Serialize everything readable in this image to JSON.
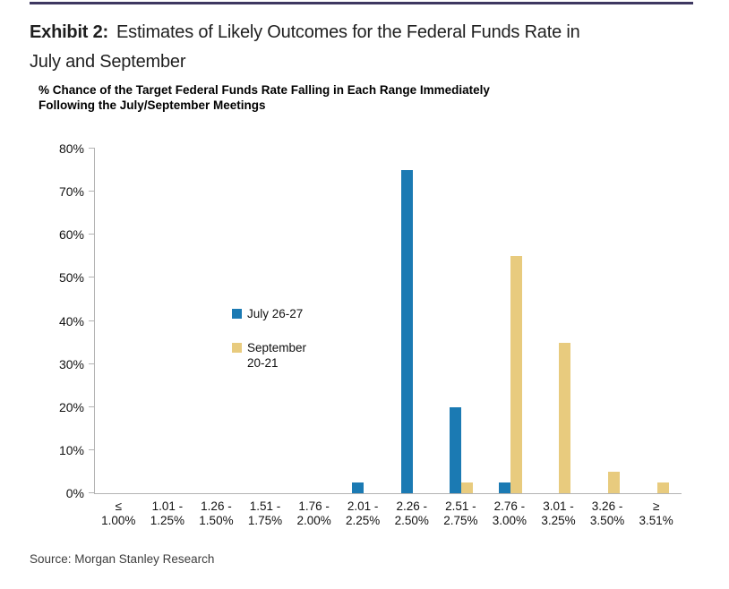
{
  "header": {
    "exhibit_label": "Exhibit 2:",
    "title_line1": "Estimates of Likely Outcomes for the Federal Funds Rate in",
    "title_line2": "July and September"
  },
  "subtitle": {
    "line1": "% Chance of the Target Federal Funds Rate Falling in Each Range Immediately",
    "line2": "Following the July/September Meetings"
  },
  "chart_data": {
    "type": "bar",
    "title": "% Chance of the Target Federal Funds Rate Falling in Each Range Immediately Following the July/September Meetings",
    "categories": [
      {
        "line1": "≤",
        "line2": "1.00%"
      },
      {
        "line1": "1.01 -",
        "line2": "1.25%"
      },
      {
        "line1": "1.26 -",
        "line2": "1.50%"
      },
      {
        "line1": "1.51 -",
        "line2": "1.75%"
      },
      {
        "line1": "1.76 -",
        "line2": "2.00%"
      },
      {
        "line1": "2.01 -",
        "line2": "2.25%"
      },
      {
        "line1": "2.26 -",
        "line2": "2.50%"
      },
      {
        "line1": "2.51 -",
        "line2": "2.75%"
      },
      {
        "line1": "2.76 -",
        "line2": "3.00%"
      },
      {
        "line1": "3.01 -",
        "line2": "3.25%"
      },
      {
        "line1": "3.26 -",
        "line2": "3.50%"
      },
      {
        "line1": "≥",
        "line2": "3.51%"
      }
    ],
    "series": [
      {
        "name": "July 26-27",
        "legend_lines": [
          "July 26-27"
        ],
        "color": "#1b7ab3",
        "values": [
          0,
          0,
          0,
          0,
          0,
          2.5,
          75,
          20,
          2.5,
          0,
          0,
          0
        ]
      },
      {
        "name": "September 20-21",
        "legend_lines": [
          "September",
          "20-21"
        ],
        "color": "#e8cb7e",
        "values": [
          0,
          0,
          0,
          0,
          0,
          0,
          0,
          2.5,
          55,
          35,
          5,
          2.5
        ]
      }
    ],
    "xlabel": "",
    "ylabel": "",
    "ylim": [
      0,
      80
    ],
    "ytick_labels": [
      "0%",
      "10%",
      "20%",
      "30%",
      "40%",
      "50%",
      "60%",
      "70%",
      "80%"
    ],
    "grid": false,
    "legend_position": "top-left-inside"
  },
  "footer": {
    "source": "Source: Morgan Stanley Research"
  },
  "colors": {
    "bar_july": "#1b7ab3",
    "bar_september": "#e8cb7e",
    "axis": "#b3b3b3",
    "top_rule": "#3e3861",
    "text": "#1a1a1a",
    "source_text": "#3d3d3d"
  }
}
